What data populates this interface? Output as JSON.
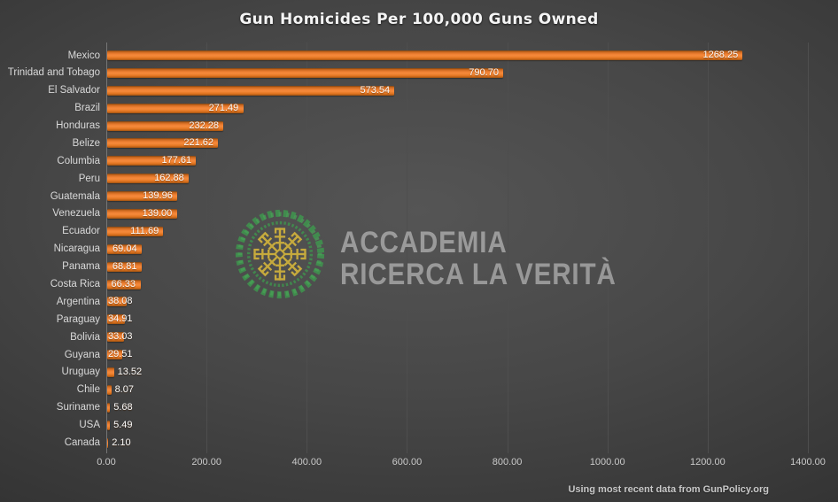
{
  "chart_data": {
    "type": "bar",
    "orientation": "horizontal",
    "title": "Gun Homicides Per 100,000 Guns Owned",
    "categories": [
      "Mexico",
      "Trinidad and Tobago",
      "El Salvador",
      "Brazil",
      "Honduras",
      "Belize",
      "Columbia",
      "Peru",
      "Guatemala",
      "Venezuela",
      "Ecuador",
      "Nicaragua",
      "Panama",
      "Costa Rica",
      "Argentina",
      "Paraguay",
      "Bolivia",
      "Guyana",
      "Uruguay",
      "Chile",
      "Suriname",
      "USA",
      "Canada"
    ],
    "values": [
      1268.25,
      790.7,
      573.54,
      271.49,
      232.28,
      221.62,
      177.61,
      162.88,
      139.96,
      139.0,
      111.69,
      69.04,
      68.81,
      66.33,
      38.08,
      34.91,
      33.03,
      29.51,
      13.52,
      8.07,
      5.68,
      5.49,
      2.1
    ],
    "value_labels": [
      "1268.25",
      "790.70",
      "573.54",
      "271.49",
      "232.28",
      "221.62",
      "177.61",
      "162.88",
      "139.96",
      "139.00",
      "111.69",
      "69.04",
      "68.81",
      "66.33",
      "38.08",
      "34.91",
      "33.03",
      "29.51",
      "13.52",
      "8.07",
      "5.68",
      "5.49",
      "2.10"
    ],
    "xlabel": "",
    "ylabel": "",
    "xlim": [
      0,
      1400
    ],
    "x_tick_values": [
      0,
      200,
      400,
      600,
      800,
      1000,
      1200,
      1400
    ],
    "x_tick_labels": [
      "0.00",
      "200.00",
      "400.00",
      "600.00",
      "800.00",
      "1000.00",
      "1200.00",
      "1400.00"
    ],
    "grid": "vertical-gridlines-on",
    "legend": "none",
    "bar_color": "#ED7D31",
    "background_color": "#3a3a3a",
    "source_note": "Using most recent data from GunPolicy.org"
  },
  "watermark": {
    "line1": "ACCADEMIA",
    "line2": "RICERCA LA VERITÀ",
    "logo": "wreath-and-keys-emblem",
    "logo_green": "#3d9b4d",
    "logo_gold": "#d1b23c",
    "text_color_hint": "semi-transparent-gray"
  }
}
